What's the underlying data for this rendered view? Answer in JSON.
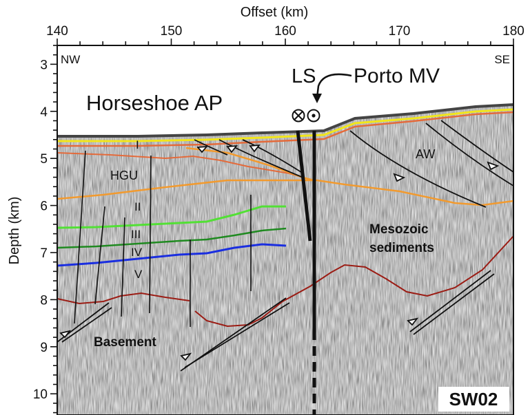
{
  "figure": {
    "x_axis_title": "Offset (km)",
    "y_axis_title": "Depth (km)",
    "x_ticks": [
      "140",
      "150",
      "160",
      "170",
      "180"
    ],
    "y_ticks": [
      "3",
      "4",
      "5",
      "6",
      "7",
      "8",
      "9",
      "10"
    ],
    "x_range": [
      140,
      180
    ],
    "y_range": [
      2.6,
      10.45
    ],
    "orientation_left": "NW",
    "orientation_right": "SE",
    "profile_label": "SW02",
    "labels": {
      "horseshoe": "Horseshoe AP",
      "ls": "LS",
      "porto_mv": "Porto MV",
      "aw": "AW",
      "hgu": "HGU",
      "unit_i": "I",
      "unit_ii": "II",
      "unit_iii": "III",
      "unit_iv": "IV",
      "unit_v": "V",
      "mesozoic_1": "Mesozoic",
      "mesozoic_2": "sediments",
      "basement": "Basement"
    },
    "colors": {
      "seafloor_yellow": "#f2e61a",
      "red_horizon": "#e46a3a",
      "orange_horizon": "#f29a2e",
      "green_light": "#52e035",
      "green_dark": "#1f8a20",
      "blue": "#1a2ee0",
      "basement_red": "#9b1c14",
      "background_noise": "#9a9a9a"
    }
  }
}
